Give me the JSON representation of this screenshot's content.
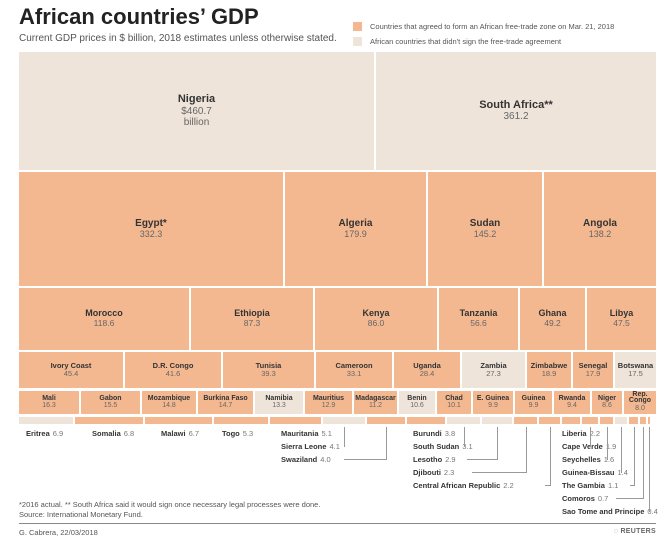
{
  "colors": {
    "signed": "#f4b891",
    "not_signed": "#efe4da"
  },
  "chart_data": {
    "type": "treemap",
    "title": "African countries’ GDP",
    "subtitle": "Current GDP prices in $ billion, 2018 estimates unless otherwise stated.",
    "legend": [
      {
        "key": "signed",
        "label": "Countries that agreed to form an African free-trade zone on Mar. 21, 2018"
      },
      {
        "key": "not_signed",
        "label": "African countries that didn't sign the free-trade agreement"
      }
    ],
    "rows": [
      [
        {
          "name": "Nigeria",
          "value_label": "$460.7",
          "unit": "billion",
          "value": 460.7,
          "status": "not_signed"
        },
        {
          "name": "South Africa**",
          "value_label": "361.2",
          "value": 361.2,
          "status": "not_signed"
        }
      ],
      [
        {
          "name": "Egypt*",
          "value_label": "332.3",
          "value": 332.3,
          "status": "signed"
        },
        {
          "name": "Algeria",
          "value_label": "179.9",
          "value": 179.9,
          "status": "signed"
        },
        {
          "name": "Sudan",
          "value_label": "145.2",
          "value": 145.2,
          "status": "signed"
        },
        {
          "name": "Angola",
          "value_label": "138.2",
          "value": 138.2,
          "status": "signed"
        }
      ],
      [
        {
          "name": "Morocco",
          "value_label": "118.6",
          "value": 118.6,
          "status": "signed"
        },
        {
          "name": "Ethiopia",
          "value_label": "87.3",
          "value": 87.3,
          "status": "signed"
        },
        {
          "name": "Kenya",
          "value_label": "86.0",
          "value": 86.0,
          "status": "signed"
        },
        {
          "name": "Tanzania",
          "value_label": "56.6",
          "value": 56.6,
          "status": "signed"
        },
        {
          "name": "Ghana",
          "value_label": "49.2",
          "value": 49.2,
          "status": "signed"
        },
        {
          "name": "Libya",
          "value_label": "47.5",
          "value": 47.5,
          "status": "signed"
        }
      ],
      [
        {
          "name": "Ivory Coast",
          "value_label": "45.4",
          "value": 45.4,
          "status": "signed"
        },
        {
          "name": "D.R. Congo",
          "value_label": "41.6",
          "value": 41.6,
          "status": "signed"
        },
        {
          "name": "Tunisia",
          "value_label": "39.3",
          "value": 39.3,
          "status": "signed"
        },
        {
          "name": "Cameroon",
          "value_label": "33.1",
          "value": 33.1,
          "status": "signed"
        },
        {
          "name": "Uganda",
          "value_label": "28.4",
          "value": 28.4,
          "status": "signed"
        },
        {
          "name": "Zambia",
          "value_label": "27.3",
          "value": 27.3,
          "status": "not_signed"
        },
        {
          "name": "Zimbabwe",
          "value_label": "18.9",
          "value": 18.9,
          "status": "signed"
        },
        {
          "name": "Senegal",
          "value_label": "17.9",
          "value": 17.9,
          "status": "signed"
        },
        {
          "name": "Botswana",
          "value_label": "17.5",
          "value": 17.5,
          "status": "not_signed"
        }
      ],
      [
        {
          "name": "Mali",
          "value_label": "16.3",
          "value": 16.3,
          "status": "signed"
        },
        {
          "name": "Gabon",
          "value_label": "15.5",
          "value": 15.5,
          "status": "signed"
        },
        {
          "name": "Mozambique",
          "value_label": "14.8",
          "value": 14.8,
          "status": "signed"
        },
        {
          "name": "Burkina Faso",
          "value_label": "14.7",
          "value": 14.7,
          "status": "not_signed_false"
        },
        {
          "name": "Namibia",
          "value_label": "13.3",
          "value": 13.3,
          "status": "not_signed"
        },
        {
          "name": "Mauritius",
          "value_label": "12.9",
          "value": 12.9,
          "status": "signed"
        },
        {
          "name": "Madagascar",
          "value_label": "11.2",
          "value": 11.2,
          "status": "signed"
        },
        {
          "name": "Benin",
          "value_label": "10.6",
          "value": 10.6,
          "status": "not_signed"
        },
        {
          "name": "Chad",
          "value_label": "10.1",
          "value": 10.1,
          "status": "signed"
        },
        {
          "name": "E. Guinea",
          "value_label": "9.9",
          "value": 9.9,
          "status": "signed"
        },
        {
          "name": "Guinea",
          "value_label": "9.9",
          "value": 9.9,
          "status": "signed"
        },
        {
          "name": "Rwanda",
          "value_label": "9.4",
          "value": 9.4,
          "status": "signed"
        },
        {
          "name": "Niger",
          "value_label": "8.6",
          "value": 8.6,
          "status": "signed"
        },
        {
          "name": "Rep. Congo",
          "value_label": "8.0",
          "value": 8.0,
          "status": "signed"
        }
      ]
    ],
    "small": [
      {
        "name": "Eritrea",
        "value_label": "6.9",
        "value": 6.9,
        "status": "not_signed"
      },
      {
        "name": "Somalia",
        "value_label": "6.8",
        "value": 6.8,
        "status": "signed"
      },
      {
        "name": "Malawi",
        "value_label": "6.7",
        "value": 6.7,
        "status": "signed"
      },
      {
        "name": "Togo",
        "value_label": "5.3",
        "value": 5.3,
        "status": "signed"
      },
      {
        "name": "Mauritania",
        "value_label": "5.1",
        "value": 5.1,
        "status": "signed"
      },
      {
        "name": "Sierra Leone",
        "value_label": "4.1",
        "value": 4.1,
        "status": "not_signed"
      },
      {
        "name": "Swaziland",
        "value_label": "4.0",
        "value": 4.0,
        "status": "signed"
      },
      {
        "name": "Burundi",
        "value_label": "3.8",
        "value": 3.8,
        "status": "signed"
      },
      {
        "name": "South Sudan",
        "value_label": "3.1",
        "value": 3.1,
        "status": "not_signed"
      },
      {
        "name": "Lesotho",
        "value_label": "2.9",
        "value": 2.9,
        "status": "not_signed"
      },
      {
        "name": "Djibouti",
        "value_label": "2.3",
        "value": 2.3,
        "status": "signed"
      },
      {
        "name": "Central African Republic",
        "value_label": "2.2",
        "value": 2.2,
        "status": "signed"
      },
      {
        "name": "Liberia",
        "value_label": "2.2",
        "value": 2.2,
        "status": "signed"
      },
      {
        "name": "Cape Verde",
        "value_label": "1.9",
        "value": 1.9,
        "status": "signed"
      },
      {
        "name": "Seychelles",
        "value_label": "1.6",
        "value": 1.6,
        "status": "signed"
      },
      {
        "name": "Guinea-Bissau",
        "value_label": "1.4",
        "value": 1.4,
        "status": "not_signed"
      },
      {
        "name": "The Gambia",
        "value_label": "1.1",
        "value": 1.1,
        "status": "signed"
      },
      {
        "name": "Comoros",
        "value_label": "0.7",
        "value": 0.7,
        "status": "signed"
      },
      {
        "name": "Sao Tome and Principe",
        "value_label": "0.4",
        "value": 0.4,
        "status": "signed"
      }
    ]
  },
  "footer": {
    "note": "*2016 actual. **  South Africa said it would sign once necessary legal processes were done.",
    "source": "Source: International Monetary Fund.",
    "credit": "G. Cabrera, 22/03/2018",
    "brand": "REUTERS"
  }
}
